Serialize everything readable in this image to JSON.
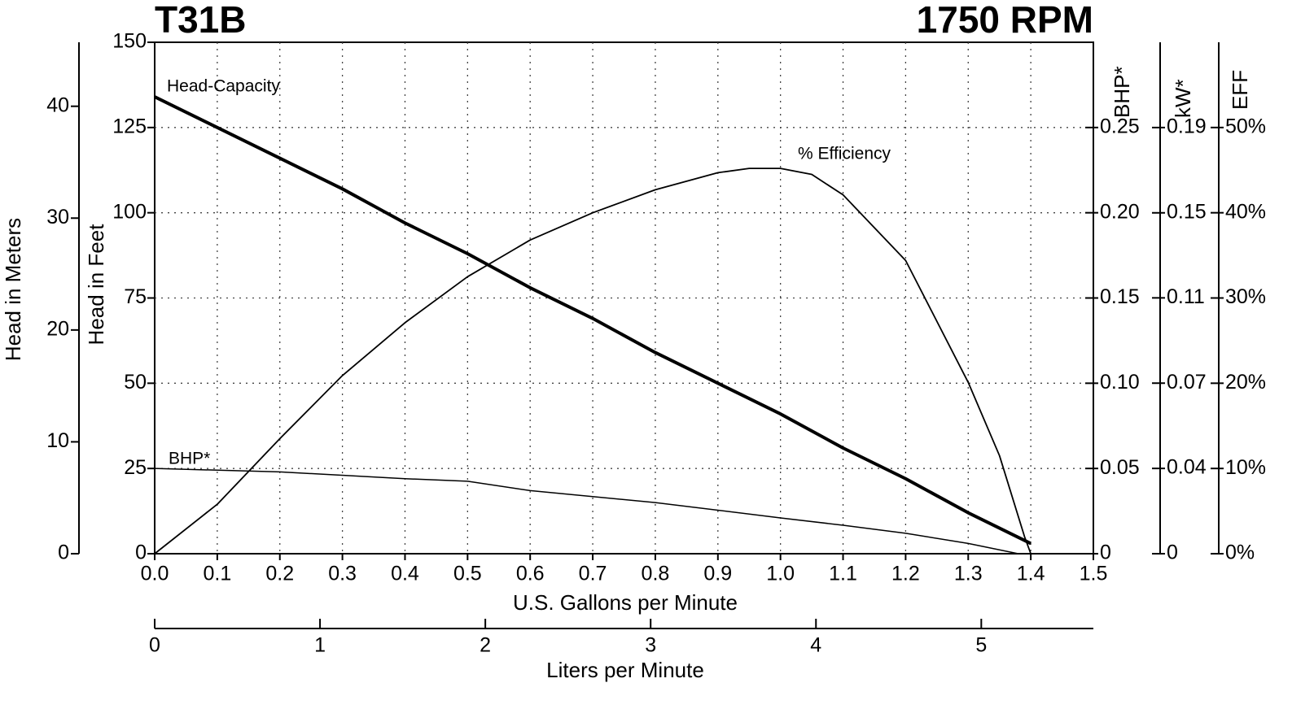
{
  "chart_data": {
    "type": "line",
    "title": "T31B",
    "subtitle": "1750 RPM",
    "xlabel": "U.S. Gallons per Minute",
    "xlim": [
      0,
      1.5
    ],
    "xticks": [
      {
        "value": 0,
        "label": "0.0"
      },
      0.1,
      0.2,
      0.3,
      0.4,
      0.5,
      0.6,
      0.7,
      0.8,
      0.9,
      {
        "value": 1,
        "label": "1.0"
      },
      1.1,
      1.2,
      1.3,
      1.4,
      1.5
    ],
    "x2label": "Liters per Minute",
    "x2lim": [
      0,
      5.678
    ],
    "x2ticks": [
      0,
      1,
      2,
      3,
      4,
      5
    ],
    "ylabel": "Head in Feet",
    "ylim": [
      0,
      150
    ],
    "yticks": [
      0,
      25,
      50,
      75,
      100,
      125,
      150
    ],
    "meters_label": "Head in Meters",
    "meters_lim": [
      0,
      45.72
    ],
    "meters_ticks": [
      0,
      10,
      20,
      30,
      40
    ],
    "bhp_label": "BHP*",
    "bhp_lim": [
      0,
      0.3
    ],
    "bhp_ticks": [
      0,
      0.05,
      {
        "value": 0.1,
        "label": "0.10"
      },
      0.15,
      {
        "value": 0.2,
        "label": "0.20"
      },
      0.25
    ],
    "kw_label": "kW*",
    "kw_lim": [
      0,
      0.2237
    ],
    "kw_ticks": [
      0,
      {
        "value": 0.0373,
        "label": "0.04"
      },
      {
        "value": 0.0746,
        "label": "0.07"
      },
      {
        "value": 0.1119,
        "label": "0.11"
      },
      {
        "value": 0.1491,
        "label": "0.15"
      },
      {
        "value": 0.1864,
        "label": "0.19"
      }
    ],
    "eff_label": "EFF",
    "eff_lim": [
      0,
      60
    ],
    "eff_ticks": [
      {
        "value": 0,
        "label": "0%"
      },
      {
        "value": 10,
        "label": "10%"
      },
      {
        "value": 20,
        "label": "20%"
      },
      {
        "value": 30,
        "label": "30%"
      },
      {
        "value": 40,
        "label": "40%"
      },
      {
        "value": 50,
        "label": "50%"
      }
    ],
    "grid": true,
    "series": [
      {
        "name": "Head-Capacity",
        "axis": "y",
        "color": "#000000",
        "x": [
          0,
          0.1,
          0.2,
          0.3,
          0.4,
          0.5,
          0.6,
          0.7,
          0.8,
          0.9,
          1.0,
          1.1,
          1.2,
          1.3,
          1.4
        ],
        "values": [
          134,
          125,
          116,
          107,
          97,
          88,
          78,
          69,
          59,
          50,
          41,
          31,
          22,
          12,
          3
        ]
      },
      {
        "name": "% Efficiency",
        "axis": "eff",
        "color": "#000000",
        "x": [
          0,
          0.1,
          0.2,
          0.3,
          0.4,
          0.5,
          0.6,
          0.7,
          0.8,
          0.9,
          0.95,
          1.0,
          1.05,
          1.1,
          1.2,
          1.3,
          1.35,
          1.39,
          1.4
        ],
        "values": [
          0,
          5.8,
          13.5,
          20.9,
          27.1,
          32.5,
          36.8,
          40,
          42.7,
          44.7,
          45.2,
          45.2,
          44.5,
          42.1,
          34.4,
          20.1,
          11.5,
          2,
          0
        ]
      },
      {
        "name": "BHP*",
        "axis": "bhp",
        "color": "#000000",
        "x": [
          0,
          0.2,
          0.4,
          0.5,
          0.6,
          0.8,
          1.0,
          1.1,
          1.2,
          1.3,
          1.38
        ],
        "values": [
          0.05,
          0.048,
          0.044,
          0.0425,
          0.037,
          0.03,
          0.021,
          0.0167,
          0.012,
          0.006,
          0
        ]
      }
    ]
  }
}
